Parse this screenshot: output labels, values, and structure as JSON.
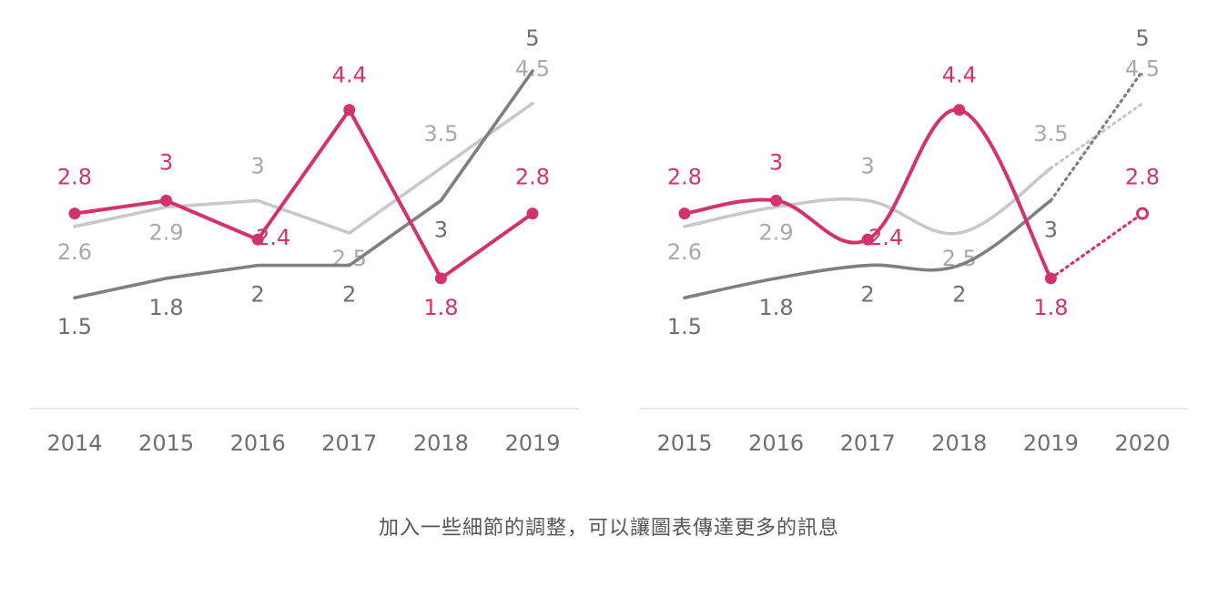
{
  "caption": "加入一些細節的調整，可以讓圖表傳達更多的訊息",
  "colors": {
    "pink": "#d2336f",
    "dark_gray": "#7f7f7f",
    "light_gray": "#c8c8c8",
    "axis": "#d9d9d9",
    "tick_text": "#6f6f6f"
  },
  "chart_data": [
    {
      "type": "line",
      "categories": [
        "2014",
        "2015",
        "2016",
        "2017",
        "2018",
        "2019"
      ],
      "ylim": [
        0,
        5.5
      ],
      "grid": false,
      "series": [
        {
          "values": [
            2.6,
            2.9,
            3,
            2.5,
            3.5,
            4.5
          ],
          "labels": [
            "2.6",
            "2.9",
            "3",
            "2.5",
            "3.5",
            "4.5"
          ],
          "color": "#c8c8c8",
          "style": "straight"
        },
        {
          "values": [
            1.5,
            1.8,
            2,
            2,
            3,
            5
          ],
          "labels": [
            "1.5",
            "1.8",
            "2",
            "2",
            "3",
            "5"
          ],
          "color": "#7f7f7f",
          "style": "straight"
        },
        {
          "values": [
            2.8,
            3,
            2.4,
            4.4,
            1.8,
            2.8
          ],
          "labels": [
            "2.8",
            "3",
            "2.4",
            "4.4",
            "1.8",
            "2.8"
          ],
          "color": "#d2336f",
          "style": "straight",
          "markers": true
        }
      ]
    },
    {
      "type": "line",
      "categories": [
        "2015",
        "2016",
        "2017",
        "2018",
        "2019",
        "2020"
      ],
      "ylim": [
        0,
        5.5
      ],
      "grid": false,
      "series": [
        {
          "values": [
            2.6,
            2.9,
            3,
            2.5,
            3.5,
            4.5
          ],
          "labels": [
            "2.6",
            "2.9",
            "3",
            "2.5",
            "3.5",
            "4.5"
          ],
          "color": "#c8c8c8",
          "style": "smooth",
          "dotted_from_index": 4
        },
        {
          "values": [
            1.5,
            1.8,
            2,
            2,
            3,
            5
          ],
          "labels": [
            "1.5",
            "1.8",
            "2",
            "2",
            "3",
            "5"
          ],
          "color": "#7f7f7f",
          "style": "smooth",
          "dotted_from_index": 4
        },
        {
          "values": [
            2.8,
            3,
            2.4,
            4.4,
            1.8,
            2.8
          ],
          "labels": [
            "2.8",
            "3",
            "2.4",
            "4.4",
            "1.8",
            "2.8"
          ],
          "color": "#d2336f",
          "style": "smooth",
          "markers": true,
          "dotted_from_index": 4,
          "hollow_last_marker": true
        }
      ]
    }
  ]
}
